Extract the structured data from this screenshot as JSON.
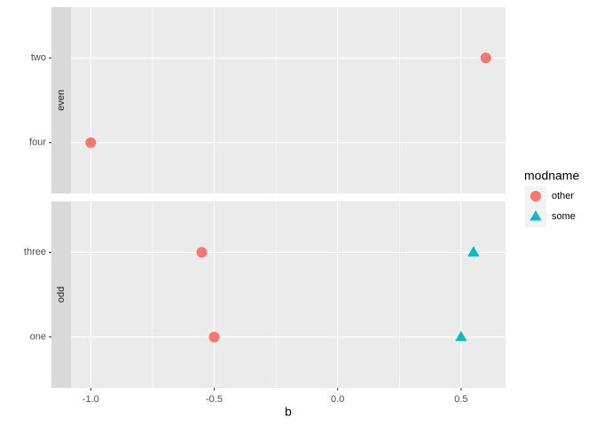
{
  "chart_data": [
    {
      "type": "scatter",
      "facet": "even",
      "categories": [
        "two",
        "four"
      ],
      "xlim": [
        -1.08,
        0.68
      ],
      "xticks": [
        {
          "value": -1,
          "label": "-1.0"
        },
        -0.5,
        {
          "value": 0,
          "label": "0.0"
        },
        0.5
      ],
      "grid": true,
      "series": [
        {
          "name": "other",
          "color": "#F8766D",
          "shape": "circle",
          "values": [
            0.6,
            -1.0
          ]
        },
        {
          "name": "some",
          "color": "#00BFC4",
          "shape": "triangle",
          "values": [
            null,
            null
          ]
        }
      ]
    },
    {
      "type": "scatter",
      "facet": "odd",
      "categories": [
        "three",
        "one"
      ],
      "xlim": [
        -1.08,
        0.68
      ],
      "xticks": [
        {
          "value": -1,
          "label": "-1.0"
        },
        -0.5,
        {
          "value": 0,
          "label": "0.0"
        },
        0.5
      ],
      "grid": true,
      "x_label": "b",
      "legend_title": "modname",
      "series": [
        {
          "name": "other",
          "color": "#F8766D",
          "shape": "circle",
          "values": [
            -0.55,
            -0.5
          ]
        },
        {
          "name": "some",
          "color": "#00BFC4",
          "shape": "triangle",
          "values": [
            0.55,
            0.5
          ]
        }
      ]
    }
  ]
}
